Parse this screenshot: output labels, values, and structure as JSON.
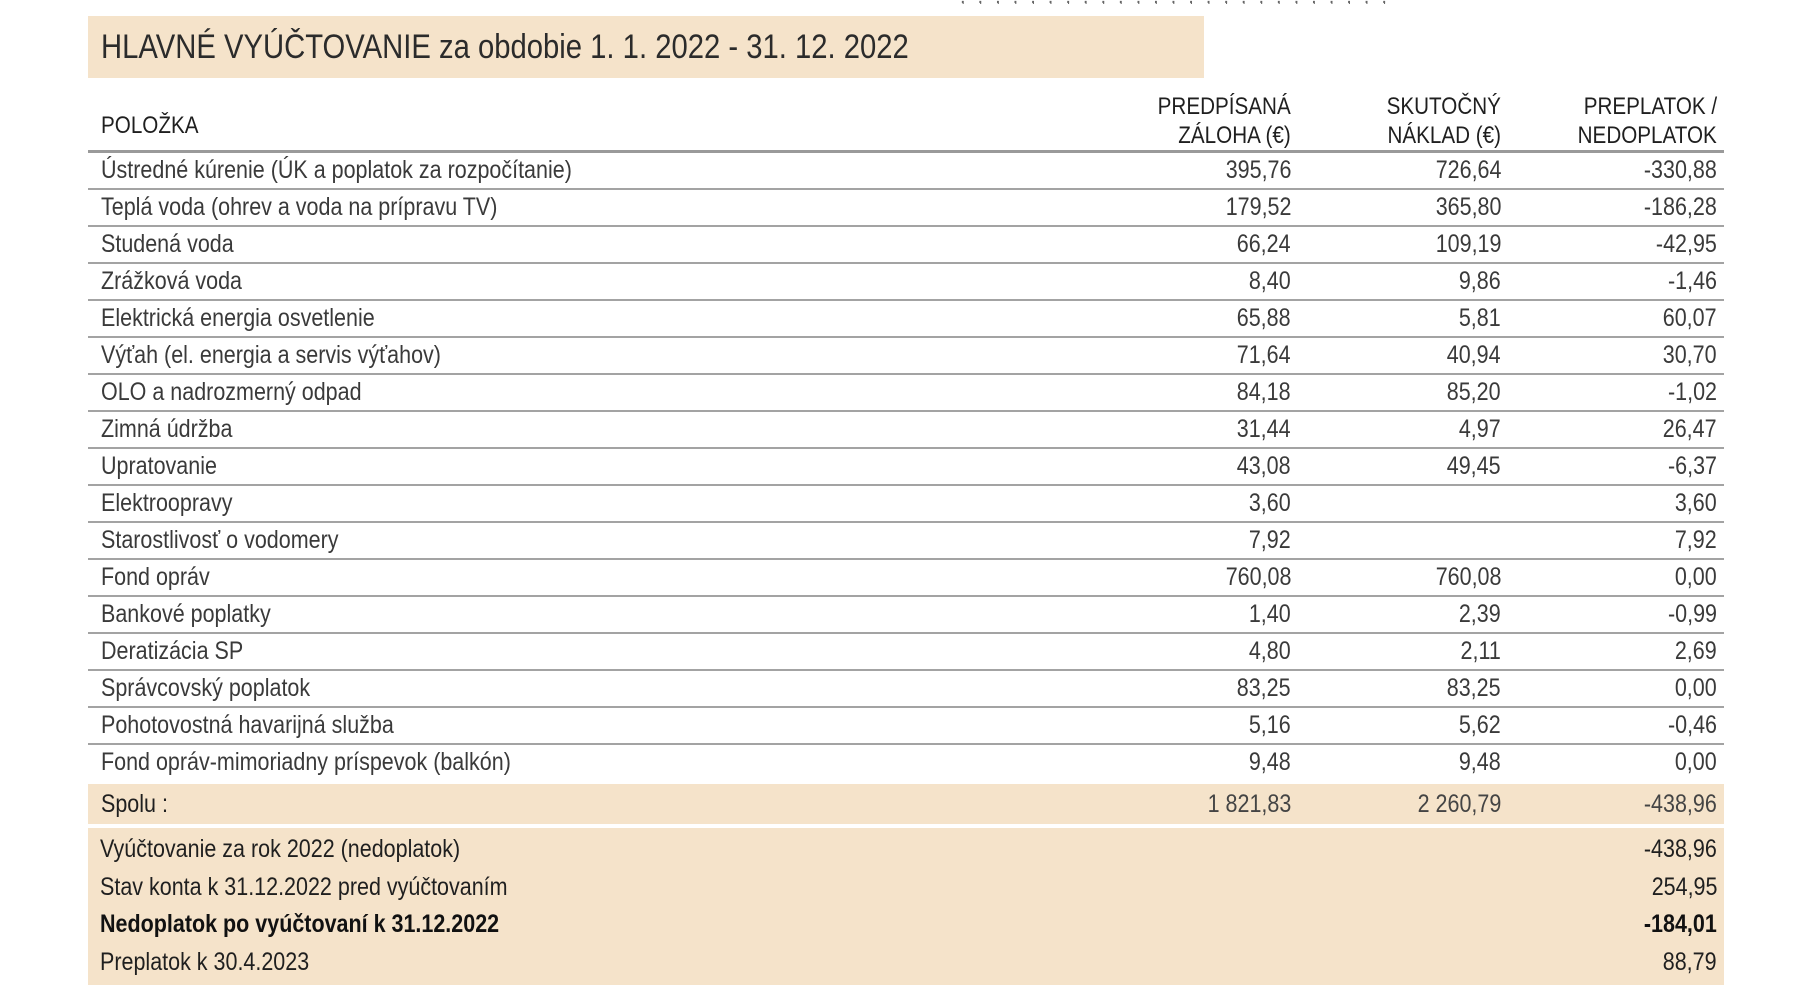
{
  "title": "HLAVNÉ VYÚČTOVANIE za obdobie 1. 1. 2022 - 31. 12. 2022",
  "table": {
    "headers": {
      "item": "POLOŽKA",
      "advance_line1": "PREDPÍSANÁ",
      "advance_line2": "ZÁLOHA (€)",
      "cost_line1": "SKUTOČNÝ",
      "cost_line2": "NÁKLAD (€)",
      "diff_line1": "PREPLATOK /",
      "diff_line2": "NEDOPLATOK"
    },
    "rows": [
      {
        "item": "Ústredné kúrenie (ÚK a poplatok za rozpočítanie)",
        "advance": "395,76",
        "cost": "726,64",
        "diff": "-330,88"
      },
      {
        "item": "Teplá voda (ohrev a voda na prípravu TV)",
        "advance": "179,52",
        "cost": "365,80",
        "diff": "-186,28"
      },
      {
        "item": "Studená voda",
        "advance": "66,24",
        "cost": "109,19",
        "diff": "-42,95"
      },
      {
        "item": "Zrážková voda",
        "advance": "8,40",
        "cost": "9,86",
        "diff": "-1,46"
      },
      {
        "item": "Elektrická energia osvetlenie",
        "advance": "65,88",
        "cost": "5,81",
        "diff": "60,07"
      },
      {
        "item": "Výťah (el. energia a servis výťahov)",
        "advance": "71,64",
        "cost": "40,94",
        "diff": "30,70"
      },
      {
        "item": "OLO a nadrozmerný odpad",
        "advance": "84,18",
        "cost": "85,20",
        "diff": "-1,02"
      },
      {
        "item": "Zimná údržba",
        "advance": "31,44",
        "cost": "4,97",
        "diff": "26,47"
      },
      {
        "item": "Upratovanie",
        "advance": "43,08",
        "cost": "49,45",
        "diff": "-6,37"
      },
      {
        "item": "Elektroopravy",
        "advance": "3,60",
        "cost": "",
        "diff": "3,60"
      },
      {
        "item": "Starostlivosť o vodomery",
        "advance": "7,92",
        "cost": "",
        "diff": "7,92"
      },
      {
        "item": "Fond opráv",
        "advance": "760,08",
        "cost": "760,08",
        "diff": "0,00"
      },
      {
        "item": "Bankové poplatky",
        "advance": "1,40",
        "cost": "2,39",
        "diff": "-0,99"
      },
      {
        "item": "Deratizácia SP",
        "advance": "4,80",
        "cost": "2,11",
        "diff": "2,69"
      },
      {
        "item": "Správcovský poplatok",
        "advance": "83,25",
        "cost": "83,25",
        "diff": "0,00"
      },
      {
        "item": "Pohotovostná havarijná služba",
        "advance": "5,16",
        "cost": "5,62",
        "diff": "-0,46"
      },
      {
        "item": "Fond opráv-mimoriadny príspevok (balkón)",
        "advance": "9,48",
        "cost": "9,48",
        "diff": "0,00"
      }
    ],
    "total": {
      "label": "Spolu :",
      "advance": "1 821,83",
      "cost": "2 260,79",
      "diff": "-438,96"
    }
  },
  "summary": [
    {
      "label": "Vyúčtovanie za rok 2022 (nedoplatok)",
      "value": "-438,96"
    },
    {
      "label": "Stav konta k 31.12.2022 pred vyúčtovaním",
      "value": "254,95"
    },
    {
      "label": "Nedoplatok po vyúčtovaní k 31.12.2022",
      "value": "-184,01"
    },
    {
      "label": "Preplatok k 30.4.2023",
      "value": "88,79"
    }
  ]
}
